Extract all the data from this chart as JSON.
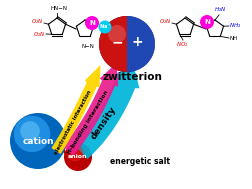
{
  "bg_color": "#ffffff",
  "zwitterion_label": "zwitterion",
  "cation_label": "cation",
  "anion_label": "anion",
  "energetic_salt_label": "energetic salt",
  "density_label": "density",
  "hbonding_label": "H-bonding interaction",
  "electrostatic_label": "electrostatic interaction",
  "arrow_blue_color": "#00b4d8",
  "arrow_magenta_color": "#e91e8c",
  "arrow_yellow_color": "#ffd600",
  "cation_color_outer": "#0077c8",
  "cation_color_inner": "#00aaff",
  "anion_color": "#cc0000",
  "zwitter_red": "#cc0000",
  "zwitter_blue": "#0044cc"
}
